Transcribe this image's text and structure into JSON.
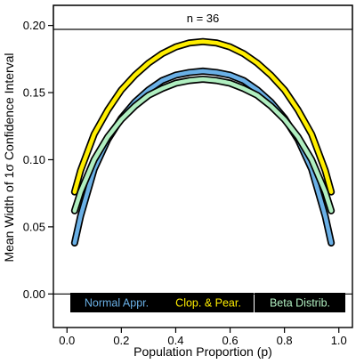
{
  "chart_data": {
    "type": "line",
    "title": "n = 36",
    "xlabel": "Population Proportion (p)",
    "ylabel": "Mean Width of 1σ Confidence Interval",
    "xlim": [
      -0.05,
      1.05
    ],
    "ylim": [
      -0.025,
      0.215
    ],
    "x_ticks": [
      "0.0",
      "0.2",
      "0.4",
      "0.6",
      "0.8",
      "1.0"
    ],
    "y_ticks": [
      "0.00",
      "0.05",
      "0.10",
      "0.15",
      "0.20"
    ],
    "reference_line": 0.0,
    "legend_position": "bottom",
    "series": [
      {
        "name": "Normal Appr.",
        "color": "#6ab0e6",
        "x": [
          0.028,
          0.05,
          0.1,
          0.15,
          0.2,
          0.25,
          0.3,
          0.35,
          0.4,
          0.45,
          0.5,
          0.55,
          0.6,
          0.65,
          0.7,
          0.75,
          0.8,
          0.85,
          0.9,
          0.95,
          0.972
        ],
        "y": [
          0.038,
          0.058,
          0.093,
          0.115,
          0.131,
          0.143,
          0.152,
          0.159,
          0.163,
          0.165,
          0.166,
          0.165,
          0.163,
          0.159,
          0.152,
          0.143,
          0.131,
          0.115,
          0.093,
          0.058,
          0.038
        ]
      },
      {
        "name": "Clop. & Pear.",
        "color": "#ffee00",
        "x": [
          0.028,
          0.05,
          0.1,
          0.15,
          0.2,
          0.25,
          0.3,
          0.35,
          0.4,
          0.45,
          0.5,
          0.55,
          0.6,
          0.65,
          0.7,
          0.75,
          0.8,
          0.85,
          0.9,
          0.95,
          0.972
        ],
        "y": [
          0.076,
          0.092,
          0.119,
          0.137,
          0.152,
          0.163,
          0.172,
          0.179,
          0.184,
          0.187,
          0.188,
          0.187,
          0.184,
          0.179,
          0.172,
          0.163,
          0.152,
          0.137,
          0.119,
          0.092,
          0.076
        ]
      },
      {
        "name": "Beta Distrib.",
        "color": "#b0eec0",
        "x": [
          0.028,
          0.05,
          0.1,
          0.15,
          0.2,
          0.25,
          0.3,
          0.35,
          0.4,
          0.45,
          0.5,
          0.55,
          0.6,
          0.65,
          0.7,
          0.75,
          0.8,
          0.85,
          0.9,
          0.95,
          0.972
        ],
        "y": [
          0.062,
          0.076,
          0.1,
          0.117,
          0.13,
          0.14,
          0.148,
          0.153,
          0.157,
          0.159,
          0.16,
          0.159,
          0.157,
          0.153,
          0.148,
          0.14,
          0.13,
          0.117,
          0.1,
          0.076,
          0.062
        ]
      }
    ]
  }
}
